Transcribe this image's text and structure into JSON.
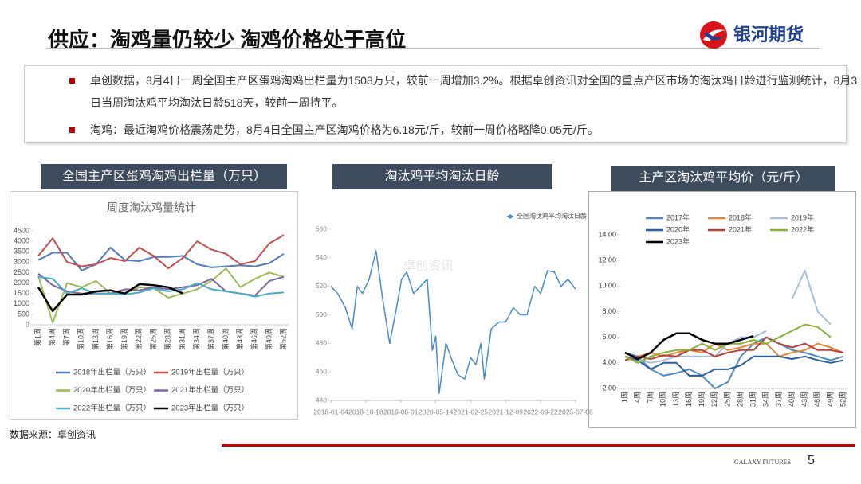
{
  "header": {
    "title": "供应：淘鸡量仍较少 淘鸡价格处于高位",
    "logo": "银河期货"
  },
  "bullets": [
    "卓创数据，8月4日一周全国主产区蛋鸡淘鸡出栏量为1508万只，较前一周增加3.2%。根据卓创资讯对全国的重点产区市场的淘汰鸡日龄进行监测统计，8月3日当周淘汰鸡平均淘汰日龄518天，较前一周持平。",
    "淘鸡：最近淘鸡价格震荡走势，8月4日全国主产区淘鸡价格为6.18元/斤，较前一周价格略降0.05元/斤。"
  ],
  "source": "数据来源：卓创资讯",
  "footer": {
    "brand": "GALAXY FUTURES",
    "page": "5"
  },
  "chart_data": [
    {
      "type": "line",
      "title": "全国主产区蛋鸡淘鸡出栏量（万只）",
      "subtitle": "周度淘汰鸡量统计",
      "categories": [
        "第1周",
        "第4周",
        "第7周",
        "第10周",
        "第13周",
        "第16周",
        "第19周",
        "第22周",
        "第25周",
        "第28周",
        "第31周",
        "第34周",
        "第37周",
        "第40周",
        "第43周",
        "第46周",
        "第49周",
        "第52周"
      ],
      "ylim": [
        0,
        4500
      ],
      "yticks": [
        0,
        500,
        1000,
        1500,
        2000,
        2500,
        3000,
        3500,
        4000,
        4500
      ],
      "series": [
        {
          "name": "2018年出栏量（万只）",
          "color": "#4f7bbf",
          "values": [
            3100,
            3450,
            3450,
            2600,
            2900,
            3700,
            3100,
            3050,
            3250,
            3250,
            3300,
            2900,
            2750,
            2800,
            2850,
            2800,
            2950,
            3400
          ]
        },
        {
          "name": "2019年出栏量（万只）",
          "color": "#c0504d",
          "values": [
            3300,
            4150,
            3000,
            2800,
            2900,
            3200,
            3050,
            3700,
            3300,
            2700,
            3200,
            4000,
            3600,
            3400,
            2900,
            3050,
            3900,
            4300
          ]
        },
        {
          "name": "2020年出栏量（万只）",
          "color": "#9bbb59",
          "values": [
            2350,
            100,
            2000,
            1800,
            2100,
            1500,
            1500,
            1800,
            1750,
            1300,
            1500,
            1700,
            2100,
            2700,
            1800,
            2200,
            2500,
            2300
          ]
        },
        {
          "name": "2021年出栏量（万只）",
          "color": "#8064a2",
          "values": [
            2450,
            1900,
            1600,
            1500,
            1500,
            1500,
            1700,
            1650,
            1800,
            1700,
            1800,
            1900,
            2200,
            1600,
            1500,
            1400,
            2100,
            2300
          ]
        },
        {
          "name": "2022年出栏量（万只）",
          "color": "#4bacc6",
          "values": [
            2300,
            2200,
            1500,
            1750,
            1500,
            1500,
            1450,
            1550,
            1750,
            1600,
            1700,
            2000,
            1700,
            1600,
            1500,
            1350,
            1500,
            1550
          ]
        },
        {
          "name": "2023年出栏量（万只）",
          "color": "#000000",
          "values": [
            1800,
            650,
            1450,
            1450,
            1600,
            1650,
            1500,
            1950,
            1900,
            1800,
            1508,
            null,
            null,
            null,
            null,
            null,
            null,
            null
          ]
        }
      ]
    },
    {
      "type": "line",
      "title": "淘汰鸡平均淘汰日龄",
      "watermark": "卓创资讯",
      "x": [
        "2018-01-04",
        "2018-03-01",
        "2018-05-03",
        "2018-06-28",
        "2018-08-09",
        "2018-09-20",
        "2018-11-15",
        "2019-01-10",
        "2019-03-07",
        "2019-05-02",
        "2019-06-27",
        "2019-08-08",
        "2019-09-19",
        "2019-11-14",
        "2020-01-09",
        "2020-03-05",
        "2020-04-16",
        "2020-05-14",
        "2020-06-11",
        "2020-08-06",
        "2020-09-17",
        "2020-11-12",
        "2021-01-07",
        "2021-02-25",
        "2021-04-08",
        "2021-05-20",
        "2021-06-17",
        "2021-08-12",
        "2021-10-14",
        "2021-12-09",
        "2022-02-10",
        "2022-04-07",
        "2022-06-02",
        "2022-08-04",
        "2022-09-22",
        "2022-11-17",
        "2023-01-12",
        "2023-03-09",
        "2023-05-04",
        "2023-07-06"
      ],
      "xlim": [
        "2018-01-04",
        "2023-07-06"
      ],
      "xticks": [
        "2018-01-04",
        "2018-10-18",
        "2019-08-01",
        "2020-05-14",
        "2021-02-25",
        "2021-12-09",
        "2022-09-22",
        "2023-07-06"
      ],
      "ylim": [
        440,
        560
      ],
      "yticks": [
        440,
        460,
        480,
        500,
        520,
        540,
        560
      ],
      "series": [
        {
          "name": "全国淘汰鸡平均淘汰日龄",
          "color": "#4a8ad0",
          "values": [
            520,
            515,
            505,
            490,
            520,
            515,
            525,
            545,
            510,
            480,
            505,
            525,
            530,
            515,
            520,
            525,
            475,
            485,
            445,
            480,
            470,
            458,
            455,
            470,
            465,
            480,
            455,
            490,
            495,
            495,
            505,
            500,
            500,
            520,
            515,
            531,
            530,
            520,
            525,
            518
          ]
        }
      ]
    },
    {
      "type": "line",
      "title": "主产区淘汰鸡平均价（元/斤）",
      "categories": [
        "1周",
        "4周",
        "7周",
        "10周",
        "13周",
        "16周",
        "19周",
        "22周",
        "25周",
        "28周",
        "31周",
        "34周",
        "37周",
        "40周",
        "43周",
        "46周",
        "49周",
        "52周"
      ],
      "ylim": [
        2,
        14
      ],
      "yticks": [
        {
          "value": 2,
          "label": "2.00"
        },
        {
          "value": 4,
          "label": "4.00"
        },
        {
          "value": 6,
          "label": "6.00"
        },
        {
          "value": 8,
          "label": "8.00"
        },
        {
          "value": 10,
          "label": "10.00"
        },
        {
          "value": 12,
          "label": "12.00"
        },
        {
          "value": 14,
          "label": "14.00"
        }
      ],
      "series": [
        {
          "name": "2017年",
          "color": "#4e8ac0",
          "values": [
            4.8,
            4.5,
            3.5,
            3.0,
            3.2,
            3.5,
            3.0,
            2.0,
            2.5,
            4.5,
            5.5,
            6.0,
            5.5,
            5.0,
            4.8,
            4.5,
            4.2,
            4.5
          ]
        },
        {
          "name": "2018年",
          "color": "#e8873a",
          "values": [
            4.2,
            4.5,
            4.8,
            4.5,
            4.8,
            5.0,
            4.8,
            5.5,
            5.0,
            5.2,
            5.5,
            5.5,
            4.5,
            4.8,
            5.0,
            5.5,
            5.2,
            4.8
          ]
        },
        {
          "name": "2019年",
          "color": "#a9bedb",
          "values": [
            4.5,
            4.3,
            4.0,
            4.2,
            4.5,
            4.5,
            4.5,
            4.5,
            5.5,
            6.0,
            6.0,
            6.5,
            null,
            9.0,
            11.2,
            8.0,
            7.0,
            null
          ]
        },
        {
          "name": "2020年",
          "color": "#2e5e9e",
          "values": [
            4.5,
            4.2,
            3.5,
            4.0,
            4.0,
            3.0,
            3.0,
            3.5,
            3.5,
            3.8,
            4.5,
            4.5,
            4.5,
            4.3,
            4.5,
            4.2,
            4.0,
            4.2
          ]
        },
        {
          "name": "2021年",
          "color": "#b5433c",
          "values": [
            4.2,
            4.5,
            4.3,
            4.6,
            4.5,
            5.0,
            5.0,
            4.5,
            4.8,
            5.0,
            5.0,
            6.0,
            5.5,
            5.2,
            5.5,
            5.0,
            5.0,
            4.8
          ]
        },
        {
          "name": "2022年",
          "color": "#8aae3a",
          "values": [
            4.5,
            4.0,
            4.5,
            4.8,
            5.0,
            5.0,
            5.5,
            5.0,
            5.5,
            5.5,
            5.8,
            5.5,
            6.0,
            6.5,
            7.0,
            6.8,
            6.0,
            null
          ]
        },
        {
          "name": "2023年",
          "color": "#000000",
          "values": [
            4.8,
            4.3,
            4.8,
            5.8,
            6.3,
            6.3,
            5.8,
            5.5,
            5.5,
            5.8,
            6.1,
            null,
            null,
            null,
            null,
            null,
            null,
            null
          ]
        }
      ]
    }
  ]
}
